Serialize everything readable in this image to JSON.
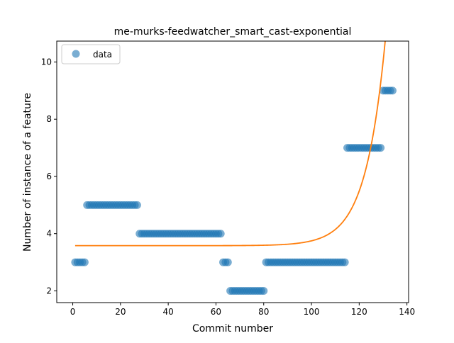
{
  "chart_data": {
    "type": "scatter",
    "title": "me-murks-feedwatcher_smart_cast-exponential",
    "xlabel": "Commit number",
    "ylabel": "Number of instance of a feature",
    "xlim": [
      -6.7,
      140.7
    ],
    "ylim": [
      1.59,
      10.73
    ],
    "xticks": [
      0,
      20,
      40,
      60,
      80,
      100,
      120,
      140
    ],
    "yticks": [
      2,
      4,
      6,
      8,
      10
    ],
    "legend": {
      "position": "top-left",
      "label": "data"
    },
    "colors": {
      "data": "#1f77b4",
      "fit": "#ff7f0e"
    },
    "series": [
      {
        "name": "data",
        "kind": "points",
        "segments": [
          {
            "x_from": 1,
            "x_to": 5,
            "y": 3
          },
          {
            "x_from": 6,
            "x_to": 27,
            "y": 5
          },
          {
            "x_from": 28,
            "x_to": 62,
            "y": 4
          },
          {
            "x_from": 63,
            "x_to": 65,
            "y": 3
          },
          {
            "x_from": 66,
            "x_to": 80,
            "y": 2
          },
          {
            "x_from": 81,
            "x_to": 114,
            "y": 3
          },
          {
            "x_from": 115,
            "x_to": 129,
            "y": 7
          },
          {
            "x_from": 130,
            "x_to": 134,
            "y": 9
          }
        ]
      },
      {
        "kind": "fit-line",
        "model": "exponential",
        "formula": "y = a + b*exp(c*x)",
        "params": {
          "a": 3.58,
          "b": 9.1e-07,
          "c": 0.1213
        },
        "x_range": [
          1,
          134
        ]
      }
    ]
  }
}
